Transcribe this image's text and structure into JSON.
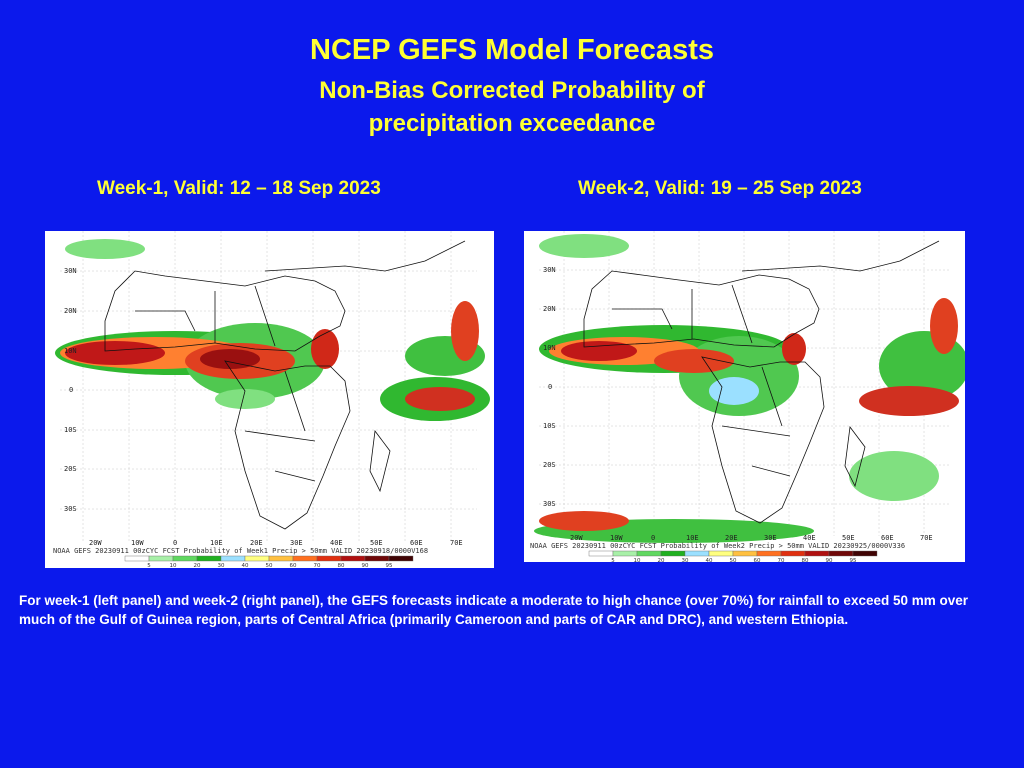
{
  "header": {
    "title": "NCEP GEFS Model Forecasts",
    "subtitle_line1": "Non-Bias Corrected Probability of",
    "subtitle_line2": "precipitation exceedance"
  },
  "panels": [
    {
      "heading": "Week-1, Valid: 12 – 18 Sep 2023",
      "footer": "NOAA GEFS 20230911 00zCYC FCST Probability of Week1 Precip > 50mm  VALID 20230918/0000V168",
      "lat_labels": [
        "30N",
        "20N",
        "10N",
        "0",
        "10S",
        "20S",
        "30S"
      ],
      "lon_labels": [
        "20W",
        "10W",
        "0",
        "10E",
        "20E",
        "30E",
        "40E",
        "50E",
        "60E",
        "70E"
      ]
    },
    {
      "heading": "Week-2, Valid: 19 – 25 Sep 2023",
      "footer": "NOAA GEFS 20230911 00zCYC FCST Probability of Week2 Precip > 50mm  VALID 20230925/0000V336",
      "lat_labels": [
        "30N",
        "20N",
        "10N",
        "0",
        "10S",
        "20S",
        "30S"
      ],
      "lon_labels": [
        "20W",
        "10W",
        "0",
        "10E",
        "20E",
        "30E",
        "40E",
        "50E",
        "60E",
        "70E"
      ]
    }
  ],
  "colorbar": {
    "ticks": [
      "5",
      "10",
      "20",
      "30",
      "40",
      "50",
      "60",
      "70",
      "80",
      "90",
      "95"
    ],
    "colors": [
      "#ffffff",
      "#a8f0a8",
      "#60d860",
      "#20b020",
      "#9be0ff",
      "#ffff80",
      "#ffc040",
      "#ff7020",
      "#e03010",
      "#b01010",
      "#700808",
      "#400404"
    ]
  },
  "caption": "For week-1 (left panel) and week-2 (right panel), the GEFS forecasts indicate a moderate to high chance (over 70%) for rainfall to exceed 50 mm over much of the Gulf of Guinea region, parts of Central Africa (primarily Cameroon and parts of CAR and DRC), and western Ethiopia."
}
